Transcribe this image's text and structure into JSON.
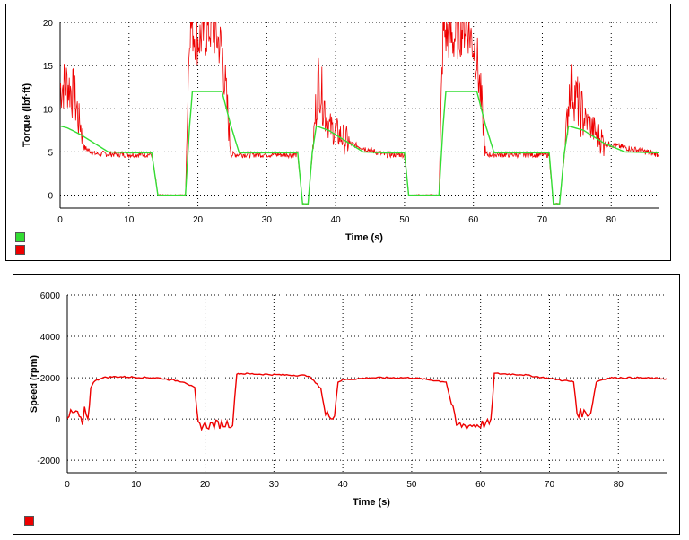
{
  "chart_data": [
    {
      "type": "line",
      "title": "",
      "xlabel": "Time (s)",
      "ylabel": "Torque (lbf·ft)",
      "xlim": [
        0,
        87
      ],
      "ylim": [
        -1.5,
        20
      ],
      "xticks": [
        0,
        10,
        20,
        30,
        40,
        50,
        60,
        70,
        80
      ],
      "yticks": [
        0,
        5,
        10,
        15,
        20
      ],
      "grid": true,
      "legend": "bottom-left",
      "series": [
        {
          "color": "#33dd33",
          "x": [
            0,
            1,
            3,
            5,
            7,
            10,
            13.3,
            14.2,
            18.2,
            18.8,
            19.2,
            23.5,
            24.8,
            26,
            30,
            34.5,
            35.2,
            36,
            36.6,
            37.2,
            39,
            42,
            44,
            47,
            50,
            50.6,
            55,
            55.6,
            56,
            60.5,
            61.8,
            63,
            66,
            71,
            71.6,
            72.5,
            73.2,
            73.8,
            76,
            79,
            82,
            87
          ],
          "values": [
            8,
            7.8,
            7,
            6,
            5,
            4.9,
            4.9,
            0,
            0,
            8,
            12,
            12,
            8,
            4.9,
            4.9,
            4.9,
            -1,
            -1,
            4.9,
            8,
            7.5,
            6,
            5,
            4.9,
            4.9,
            0,
            0,
            8,
            12,
            12,
            8,
            4.9,
            4.9,
            4.9,
            -1,
            -1,
            4.9,
            8,
            7.5,
            6,
            5,
            4.9
          ]
        },
        {
          "color": "#ee0000",
          "x": [
            0,
            1,
            2,
            3,
            3.5,
            5,
            10,
            13.3,
            14.2,
            18.2,
            18.8,
            20,
            22,
            23.5,
            24.8,
            30,
            34.5,
            35.2,
            36,
            36.6,
            37.5,
            39,
            42,
            47,
            50,
            50.6,
            55,
            55.6,
            57,
            59,
            60.5,
            61.8,
            66,
            71,
            71.6,
            72.5,
            73.2,
            74,
            76,
            79,
            87
          ],
          "values": [
            12.5,
            13,
            11.5,
            8,
            5.5,
            4.8,
            4.7,
            4.7,
            0,
            0,
            20,
            18,
            19.5,
            17,
            4.7,
            4.7,
            4.7,
            -1,
            -1,
            4.7,
            13.5,
            8,
            6,
            4.7,
            4.7,
            0,
            0,
            19,
            18,
            20,
            16,
            4.7,
            4.7,
            4.7,
            -1,
            -1,
            4.7,
            13,
            9,
            6,
            4.7
          ]
        }
      ]
    },
    {
      "type": "line",
      "title": "",
      "xlabel": "Time (s)",
      "ylabel": "Speed (rpm)",
      "xlim": [
        0,
        87
      ],
      "ylim": [
        -2600,
        6000
      ],
      "xticks": [
        0,
        10,
        20,
        30,
        40,
        50,
        60,
        70,
        80
      ],
      "yticks": [
        -2000,
        0,
        2000,
        4000,
        6000
      ],
      "grid": true,
      "legend": "bottom-left",
      "series": [
        {
          "color": "#ee0000",
          "x": [
            0,
            1.5,
            2.2,
            2.5,
            3,
            3.4,
            3.8,
            5,
            7,
            13,
            17,
            18.5,
            19,
            20,
            24,
            24.6,
            25,
            30,
            35,
            36.8,
            37.5,
            38.8,
            39.3,
            40,
            44,
            50,
            55,
            56.5,
            59,
            61.5,
            62,
            66,
            73.5,
            74,
            76,
            76.8,
            77.5,
            79,
            83,
            87
          ],
          "values": [
            200,
            300,
            -300,
            400,
            -200,
            1500,
            1800,
            2000,
            2050,
            2000,
            1800,
            1500,
            -300,
            -300,
            -200,
            2200,
            2200,
            2150,
            2100,
            1500,
            200,
            200,
            1800,
            1900,
            2000,
            2000,
            1800,
            -300,
            -300,
            -200,
            2200,
            2150,
            1800,
            300,
            300,
            1800,
            1900,
            2000,
            2000,
            1950
          ]
        }
      ]
    }
  ]
}
